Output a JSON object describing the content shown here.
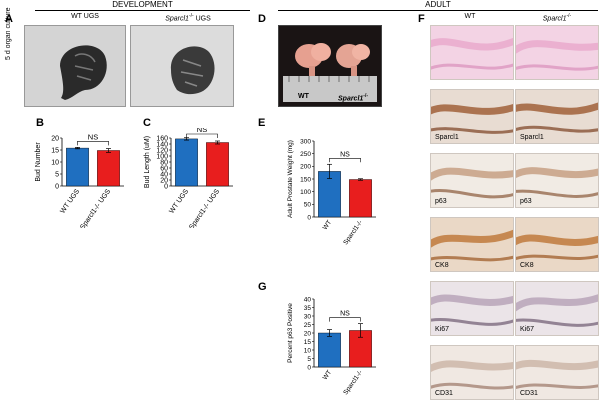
{
  "headers": {
    "development": "DEVELOPMENT",
    "adult": "ADULT"
  },
  "panel_letters": {
    "a": "A",
    "b": "B",
    "c": "C",
    "d": "D",
    "e": "E",
    "f": "F",
    "g": "G"
  },
  "panel_a": {
    "culture_label": "5 d organ culture",
    "wt_label": "WT UGS",
    "ko_label": "UGS",
    "ko_name": "Sparcl1",
    "ko_sup": "-/-"
  },
  "panel_d": {
    "wt_label": "WT",
    "ko_name": "Sparcl1",
    "ko_sup": "-/-"
  },
  "panel_f": {
    "wt_label": "WT",
    "ko_name": "Sparcl1",
    "ko_sup": "-/-",
    "rows": [
      "",
      "Sparcl1",
      "p63",
      "CK8",
      "Ki67",
      "CD31"
    ]
  },
  "colors": {
    "wt": "#1f6fc0",
    "ko": "#e81e1e"
  },
  "chart_data": [
    {
      "type": "bar",
      "panel": "B",
      "ylabel": "Bud Number",
      "ylim": [
        0,
        20
      ],
      "yticks": [
        0,
        5,
        10,
        15,
        20
      ],
      "categories": [
        "WT UGS",
        "Sparcl1-/- UGS"
      ],
      "values": [
        15.8,
        14.8
      ],
      "errors": [
        0.3,
        0.8
      ],
      "sig": "NS"
    },
    {
      "type": "bar",
      "panel": "C",
      "ylabel": "Bud Length (uM)",
      "ylim": [
        0,
        160
      ],
      "yticks": [
        0,
        20,
        40,
        60,
        80,
        100,
        120,
        140,
        160
      ],
      "categories": [
        "WT UGS",
        "Sparcl1-/- UGS"
      ],
      "values": [
        157,
        145
      ],
      "errors": [
        4,
        5
      ],
      "sig": "NS"
    },
    {
      "type": "bar",
      "panel": "E",
      "ylabel": "Adult Prostate Weight (mg)",
      "ylim": [
        0,
        300
      ],
      "yticks": [
        0,
        50,
        100,
        150,
        200,
        250,
        300
      ],
      "categories": [
        "WT",
        "Sparcl1-/-"
      ],
      "values": [
        180,
        148
      ],
      "errors": [
        28,
        3
      ],
      "sig": "NS"
    },
    {
      "type": "bar",
      "panel": "G",
      "ylabel": "Percent p63 Positive",
      "ylim": [
        0,
        40
      ],
      "yticks": [
        0,
        5,
        10,
        15,
        20,
        25,
        30,
        35,
        40
      ],
      "categories": [
        "WT",
        "Sparcl1-/-"
      ],
      "values": [
        20,
        21.5
      ],
      "errors": [
        2,
        4
      ],
      "sig": "NS"
    }
  ]
}
